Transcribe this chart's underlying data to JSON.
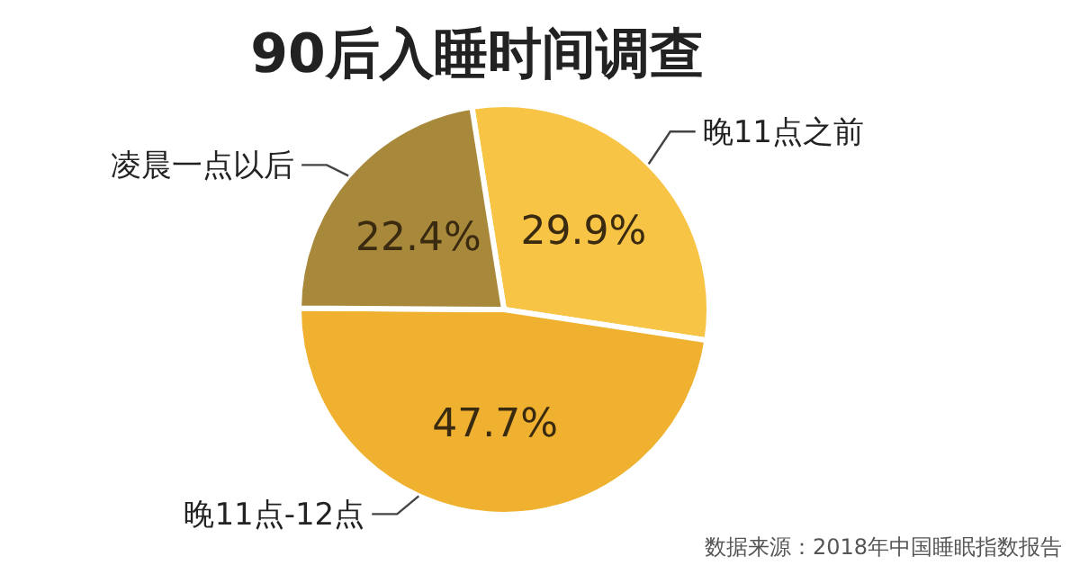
{
  "chart_data": {
    "type": "pie",
    "title": "90后入睡时间调查",
    "categories": [
      "晚11点之前",
      "晚11点-12点",
      "凌晨一点以后"
    ],
    "values": [
      29.9,
      47.7,
      22.4
    ],
    "colors": [
      "#f7c445",
      "#efb12f",
      "#a8893b"
    ],
    "value_labels": [
      "29.9%",
      "47.7%",
      "22.4%"
    ],
    "annotations": [
      "数据来源：2018年中国睡眠指数报告"
    ]
  }
}
